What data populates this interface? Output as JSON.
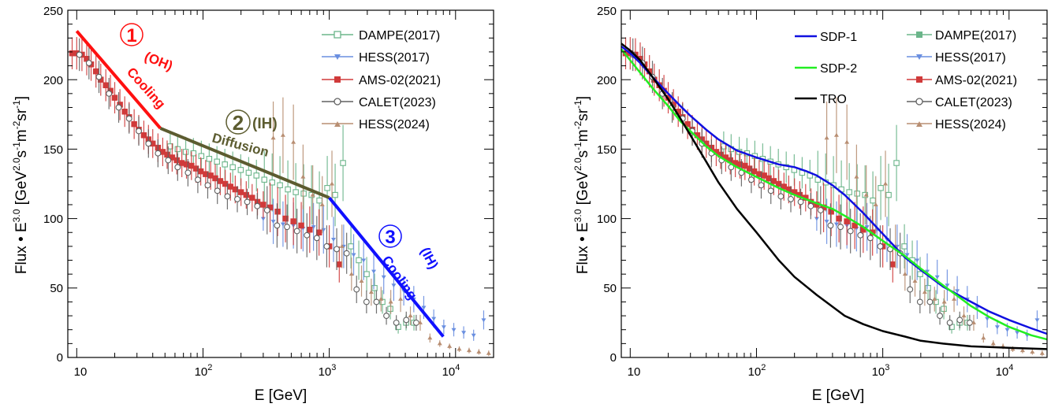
{
  "colors": {
    "dampe": "#6bb58a",
    "hess2017": "#6a8fe0",
    "ams": "#d03a3a",
    "calet": "#606060",
    "hess2024": "#b88e72",
    "cool_oh": "#ff1010",
    "diffusion": "#5c5c30",
    "cool_ih": "#1010ff",
    "sdp1": "#1010e0",
    "sdp2": "#22ee22",
    "tro": "#000000"
  },
  "chart_data": [
    {
      "type": "scatter",
      "xlabel": "E [GeV]",
      "ylabel_main": "Flux • E",
      "ylabel_sup": "3.0",
      "ylabel_unit": " [GeV",
      "ylabel_unit_sup": "2.0",
      "ylabel_s": "s",
      "ylabel_s_sup": "-1",
      "ylabel_m": "m",
      "ylabel_m_sup": "-2",
      "ylabel_sr": "sr",
      "ylabel_sr_sup": "-1",
      "ylabel_end": "]",
      "xscale": "log",
      "xlim": [
        8.5,
        20000
      ],
      "ylim": [
        0,
        250
      ],
      "x_ticklabels": {
        "t10": "10",
        "t100": "10",
        "t100_sup": "2",
        "t1000": "10",
        "t1000_sup": "3",
        "t10000": "10",
        "t10000_sup": "4"
      },
      "y_ticks": [
        0,
        50,
        100,
        150,
        200,
        250
      ],
      "legend_position": "top-right",
      "series": [
        {
          "name": "DAMPE(2017)",
          "marker": "open-square",
          "color_key": "dampe",
          "x": [
            55,
            63,
            73,
            84,
            97,
            112,
            129,
            149,
            172,
            199,
            230,
            265,
            306,
            353,
            407,
            470,
            543,
            627,
            724,
            835,
            964,
            1113,
            1285,
            1484,
            1713,
            1978,
            2283,
            2636,
            3044,
            3515,
            4058,
            4685
          ],
          "y": [
            152,
            150,
            148,
            147,
            145,
            143,
            141,
            139,
            137,
            135,
            133,
            131,
            128,
            126,
            124,
            121,
            119,
            118,
            117,
            113,
            122,
            117,
            140,
            80,
            70,
            60,
            50,
            40,
            35,
            22,
            25,
            25
          ]
        },
        {
          "name": "HESS(2017)",
          "marker": "down-triangle",
          "color_key": "hess2017",
          "x": [
            300,
            360,
            430,
            520,
            620,
            750,
            900,
            1080,
            1300,
            1560,
            1870,
            2250,
            2700,
            3240,
            3890,
            4670,
            5600,
            6720,
            8070,
            9680,
            11600,
            13900,
            16700
          ],
          "y": [
            100,
            98,
            96,
            95,
            93,
            94,
            92,
            85,
            80,
            74,
            70,
            62,
            58,
            52,
            48,
            42,
            36,
            28,
            22,
            20,
            18,
            16,
            27
          ]
        },
        {
          "name": "AMS-02(2021)",
          "marker": "filled-square",
          "color_key": "ams",
          "x": [
            9.2,
            10,
            11,
            12,
            13,
            14.2,
            15.5,
            17,
            18.5,
            20,
            22,
            24,
            26,
            28.5,
            31,
            34,
            37,
            40,
            44,
            48,
            52,
            57,
            62,
            68,
            74,
            81,
            88,
            96,
            105,
            115,
            125,
            137,
            150,
            165,
            180,
            200,
            220,
            245,
            270,
            300,
            340,
            390,
            450,
            520,
            600,
            700,
            830,
            1000,
            1200
          ],
          "y": [
            219,
            219,
            218,
            215,
            211,
            206,
            200,
            196,
            192,
            187,
            182,
            177,
            173,
            168,
            164,
            160,
            157,
            154,
            151,
            148,
            146,
            144,
            142,
            140,
            139,
            138,
            136,
            134,
            132,
            131,
            129,
            127,
            125,
            123,
            121,
            119,
            117,
            115,
            112,
            110,
            108,
            105,
            100,
            98,
            95,
            92,
            90,
            80,
            67
          ]
        },
        {
          "name": "CALET(2023)",
          "marker": "open-circle",
          "color_key": "calet",
          "x": [
            10.5,
            12.5,
            15,
            18,
            21.5,
            26,
            31,
            37,
            44,
            53,
            63,
            76,
            91,
            109,
            130,
            156,
            187,
            224,
            269,
            322,
            386,
            463,
            555,
            665,
            797,
            955,
            1145,
            1373,
            1645,
            1972,
            2364,
            2833,
            3396,
            4070,
            4880
          ],
          "y": [
            218,
            212,
            202,
            190,
            180,
            172,
            163,
            154,
            147,
            142,
            137,
            133,
            128,
            124,
            120,
            116,
            114,
            112,
            109,
            106,
            95,
            94,
            91,
            88,
            86,
            80,
            78,
            75,
            49,
            40,
            40,
            30,
            25,
            27,
            25
          ]
        },
        {
          "name": "HESS(2024)",
          "marker": "up-triangle",
          "color_key": "hess2024",
          "x": [
            360,
            430,
            520,
            620,
            740,
            880,
            1050,
            1260,
            1500,
            1800,
            2150,
            2570,
            3070,
            3670,
            4390,
            5250,
            6270,
            7500,
            8960,
            10700,
            12800,
            15300,
            18300
          ],
          "y": [
            158,
            160,
            155,
            130,
            117,
            110,
            125,
            80,
            60,
            55,
            47,
            42,
            40,
            42,
            30,
            25,
            14,
            10,
            8,
            6,
            5,
            4,
            3
          ]
        }
      ],
      "annotation_lines": [
        {
          "name": "cooling-oh",
          "color_key": "cool_oh",
          "x": [
            10,
            46
          ],
          "y": [
            235,
            165
          ]
        },
        {
          "name": "diffusion-ih",
          "color_key": "diffusion",
          "x": [
            46,
            1000
          ],
          "y": [
            165,
            115
          ]
        },
        {
          "name": "cooling-ih",
          "color_key": "cool_ih",
          "x": [
            1000,
            8000
          ],
          "y": [
            115,
            15
          ]
        }
      ],
      "annotations": {
        "a1_num": "1",
        "a1_tag": "(OH)",
        "a1_label": "Cooling",
        "a2_num": "2",
        "a2_tag": "(IH)",
        "a2_label": "Diffusion",
        "a3_num": "3",
        "a3_tag": "(IH)",
        "a3_label": "Cooling"
      }
    },
    {
      "type": "line",
      "xlabel": "E [GeV]",
      "xscale": "log",
      "xlim": [
        8.5,
        20000
      ],
      "ylim": [
        0,
        250
      ],
      "legend_position": "top-right",
      "model_lines": [
        {
          "name": "SDP-1",
          "color_key": "sdp1",
          "x": [
            8.5,
            10,
            12,
            15,
            20,
            25,
            30,
            40,
            50,
            70,
            100,
            150,
            200,
            250,
            300,
            400,
            500,
            700,
            1000,
            1500,
            2000,
            3000,
            5000,
            7000,
            10000,
            15000,
            20000
          ],
          "y": [
            224,
            219,
            212,
            202,
            190,
            181,
            174,
            164,
            157,
            149,
            144,
            139,
            137,
            134,
            131,
            124,
            117,
            104,
            89,
            72,
            63,
            51,
            40,
            33,
            27,
            21,
            17
          ]
        },
        {
          "name": "SDP-2",
          "color_key": "sdp2",
          "x": [
            8.5,
            10,
            12,
            15,
            20,
            25,
            30,
            40,
            50,
            70,
            100,
            150,
            200,
            300,
            400,
            500,
            700,
            1000,
            1500,
            2000,
            3000,
            5000,
            7000,
            10000,
            15000,
            20000
          ],
          "y": [
            222,
            214,
            205,
            194,
            181,
            170,
            163,
            152,
            145,
            137,
            130,
            122,
            117,
            111,
            107,
            102,
            94,
            84,
            73,
            64,
            52,
            37,
            29,
            22,
            16,
            13
          ]
        },
        {
          "name": "TRO",
          "color_key": "tro",
          "x": [
            8.5,
            10,
            12,
            15,
            20,
            25,
            30,
            40,
            50,
            70,
            100,
            150,
            200,
            300,
            500,
            700,
            1000,
            1500,
            2000,
            3000,
            5000,
            10000,
            20000
          ],
          "y": [
            226,
            221,
            214,
            202,
            186,
            172,
            160,
            141,
            126,
            107,
            90,
            70,
            58,
            45,
            30,
            24,
            19,
            15,
            12,
            10,
            8,
            7,
            6
          ]
        }
      ]
    }
  ]
}
